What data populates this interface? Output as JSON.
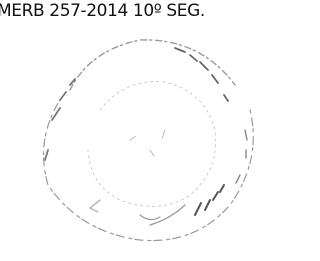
{
  "header": {
    "text": "MERB 257-2014 10º SEG."
  }
}
